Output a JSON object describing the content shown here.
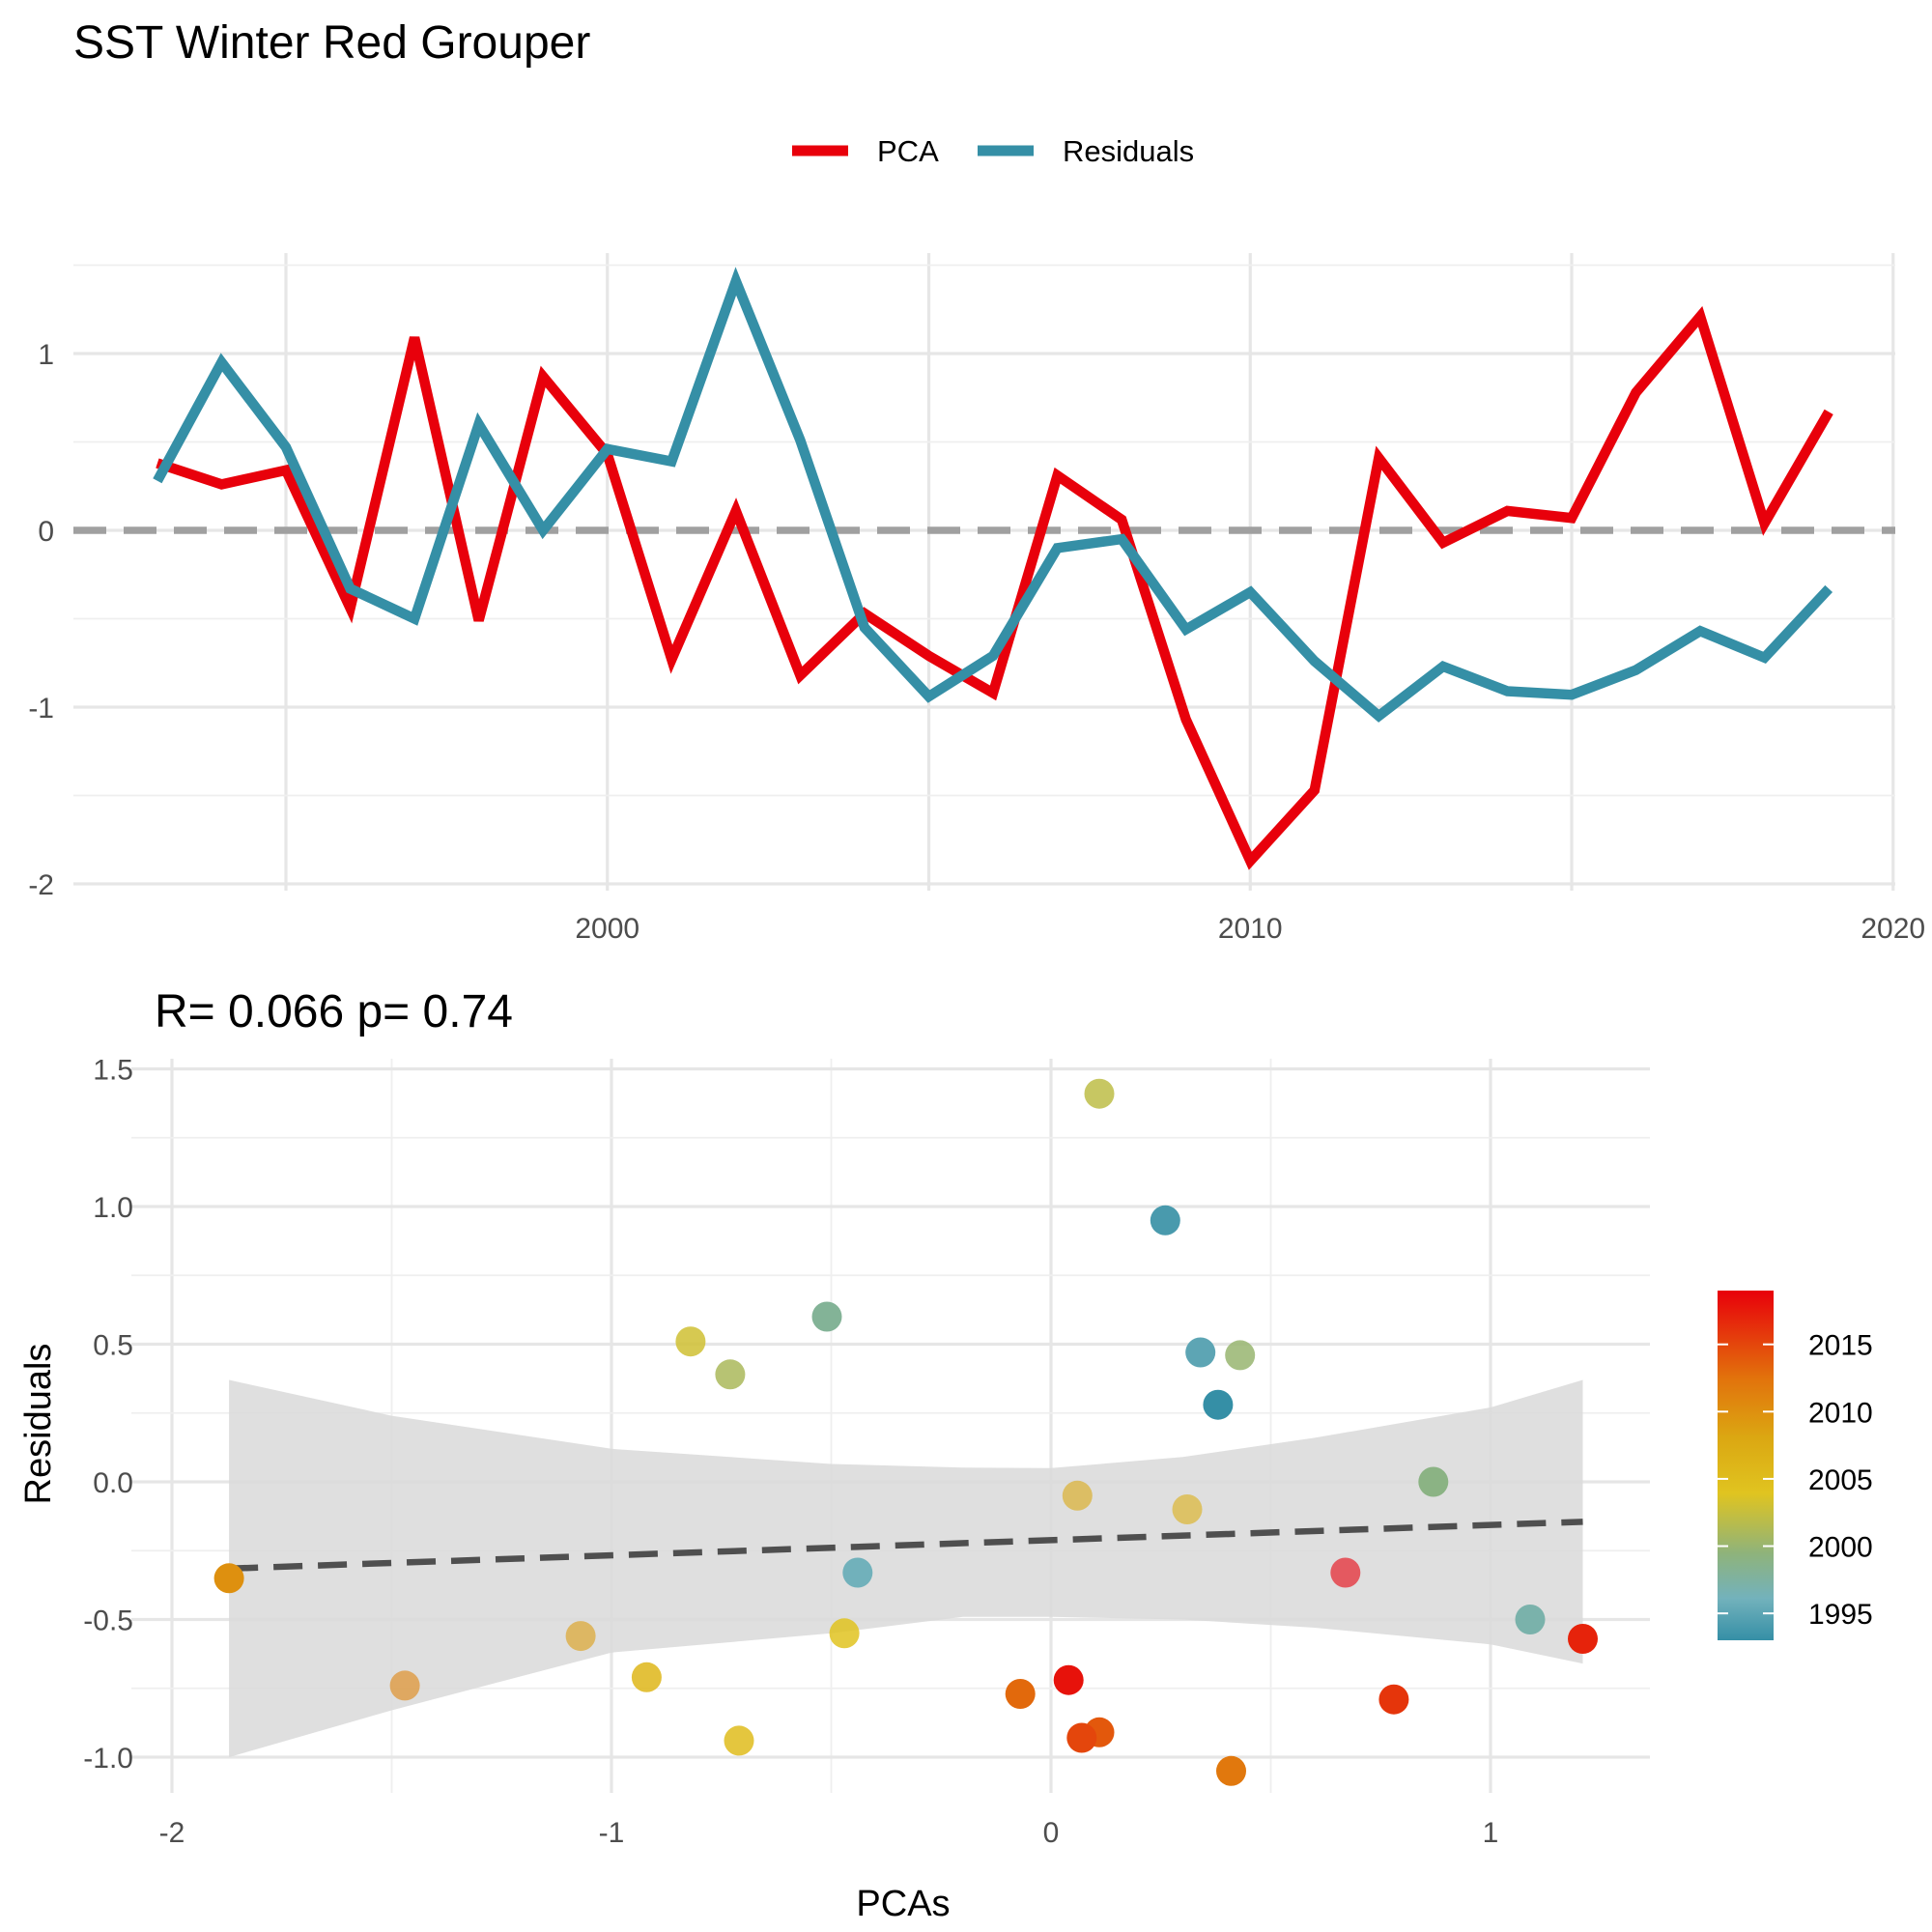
{
  "figure": {
    "title": "SST Winter Red Grouper",
    "legend_position": "top"
  },
  "chart_data": [
    {
      "type": "line",
      "legend": {
        "position": "top",
        "entries": [
          "PCA",
          "Residuals"
        ]
      },
      "xlim": [
        1990.7,
        2020.0
      ],
      "ylim": [
        -2.0,
        1.5
      ],
      "x_ticks": [
        2000,
        2010,
        2020
      ],
      "y_ticks": [
        -2,
        -1,
        0,
        1
      ],
      "grid": true,
      "reference_line": {
        "y": 0,
        "style": "dashed",
        "color": "#a0a0a0"
      },
      "x": [
        1993,
        1994,
        1995,
        1996,
        1997,
        1998,
        1999,
        2000,
        2001,
        2002,
        2003,
        2004,
        2005,
        2006,
        2007,
        2008,
        2009,
        2010,
        2011,
        2012,
        2013,
        2014,
        2015,
        2016,
        2017,
        2018,
        2019
      ],
      "series": [
        {
          "name": "PCA",
          "color": "#e8000b",
          "values": [
            0.38,
            0.26,
            0.34,
            -0.44,
            1.09,
            -0.51,
            0.87,
            0.43,
            -0.73,
            0.11,
            -0.82,
            -0.47,
            -0.71,
            -0.92,
            0.31,
            0.06,
            -1.07,
            -1.87,
            -1.47,
            0.41,
            -0.07,
            0.11,
            0.07,
            0.78,
            1.21,
            0.04,
            0.67
          ]
        },
        {
          "name": "Residuals",
          "color": "#358fa6",
          "values": [
            0.28,
            0.95,
            0.47,
            -0.33,
            -0.5,
            0.6,
            0.0,
            0.46,
            0.39,
            1.41,
            0.51,
            -0.55,
            -0.94,
            -0.71,
            -0.1,
            -0.05,
            -0.56,
            -0.35,
            -0.74,
            -1.05,
            -0.77,
            -0.91,
            -0.93,
            -0.79,
            -0.57,
            -0.72,
            -0.33
          ]
        }
      ]
    },
    {
      "type": "scatter",
      "subtitle": "R= 0.066  p= 0.74",
      "xlabel": "PCAs",
      "ylabel": "Residuals",
      "xlim": [
        -2.1,
        1.37
      ],
      "ylim": [
        -1.12,
        1.56
      ],
      "x_ticks": [
        -2,
        -1,
        0,
        1
      ],
      "y_ticks": [
        -1.0,
        -0.5,
        0.0,
        0.5,
        1.0,
        1.5
      ],
      "y_tick_labels": [
        "-1.0",
        "-0.5",
        "0.0",
        "0.5",
        "1.0",
        "1.5"
      ],
      "grid": true,
      "colorbar": {
        "ticks": [
          2015,
          2010,
          2005,
          2000,
          1995
        ],
        "range": [
          1993,
          2019
        ],
        "gradient": [
          {
            "stop": 0.0,
            "color": "#e8000b"
          },
          {
            "stop": 0.25,
            "color": "#e2720c"
          },
          {
            "stop": 0.42,
            "color": "#dba712"
          },
          {
            "stop": 0.58,
            "color": "#e0c420"
          },
          {
            "stop": 0.75,
            "color": "#8fb37a"
          },
          {
            "stop": 0.88,
            "color": "#73b2bc"
          },
          {
            "stop": 1.0,
            "color": "#358fa6"
          }
        ]
      },
      "fit_line": {
        "style": "dashed",
        "color": "#4f4f4f",
        "x": [
          -1.87,
          1.21
        ],
        "y": [
          -0.315,
          -0.145
        ]
      },
      "confidence_band": {
        "color": "#d9d9d9",
        "x": [
          -1.87,
          -1.5,
          -1.0,
          -0.5,
          -0.2,
          0.0,
          0.3,
          0.6,
          1.0,
          1.21
        ],
        "upper": [
          0.37,
          0.24,
          0.12,
          0.065,
          0.052,
          0.05,
          0.09,
          0.16,
          0.27,
          0.37
        ],
        "lower": [
          -1.0,
          -0.83,
          -0.62,
          -0.55,
          -0.49,
          -0.49,
          -0.5,
          -0.53,
          -0.59,
          -0.66
        ]
      },
      "points": {
        "x": [
          0.38,
          0.26,
          0.34,
          -0.44,
          1.09,
          -0.51,
          0.87,
          0.43,
          -0.73,
          0.11,
          -0.82,
          -0.47,
          -0.71,
          -0.92,
          0.31,
          0.06,
          -1.07,
          -1.87,
          -1.47,
          0.41,
          -0.07,
          0.11,
          0.07,
          0.78,
          1.21,
          0.04,
          0.67
        ],
        "y": [
          0.28,
          0.95,
          0.47,
          -0.33,
          -0.5,
          0.6,
          0.0,
          0.46,
          0.39,
          1.41,
          0.51,
          -0.55,
          -0.94,
          -0.71,
          -0.1,
          -0.05,
          -0.56,
          -0.35,
          -0.74,
          -1.05,
          -0.77,
          -0.91,
          -0.93,
          -0.79,
          -0.57,
          -0.72,
          -0.33
        ],
        "year": [
          1993,
          1994,
          1995,
          1996,
          1997,
          1998,
          1999,
          2000,
          2001,
          2002,
          2003,
          2004,
          2005,
          2006,
          2007,
          2008,
          2009,
          2010,
          2011,
          2012,
          2013,
          2014,
          2015,
          2016,
          2017,
          2018,
          2019
        ],
        "alpha": [
          1,
          1,
          1,
          1,
          1,
          1,
          1,
          0.85,
          0.85,
          0.85,
          0.85,
          0.85,
          0.85,
          0.85,
          0.6,
          0.6,
          0.6,
          1,
          0.6,
          1,
          1,
          1,
          1,
          1,
          1,
          1,
          0.6
        ]
      }
    }
  ]
}
